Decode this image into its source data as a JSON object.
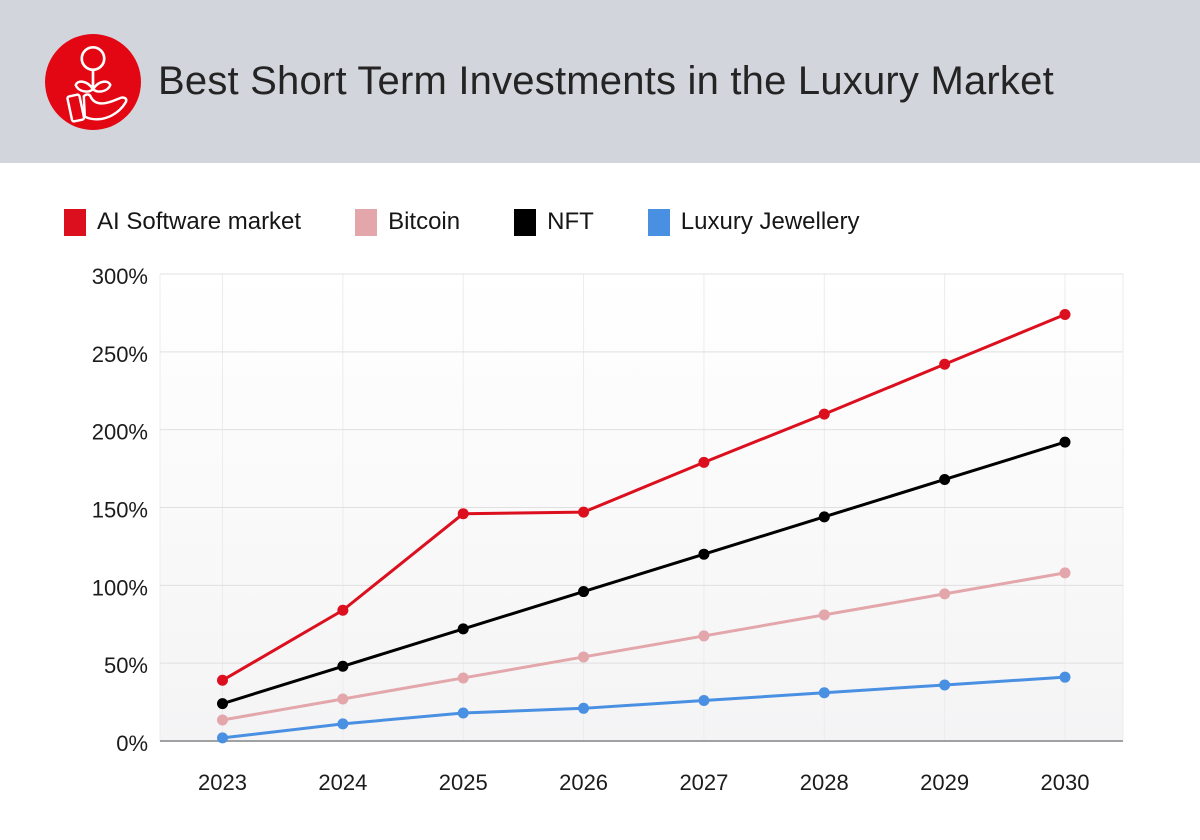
{
  "header": {
    "title": "Best Short Term Investments in the Luxury Market",
    "icon": "plant-in-hand-icon",
    "background_color": "#d3d5dc",
    "accent_color": "#e30613"
  },
  "chart_data": {
    "type": "line",
    "title": "Best Short Term Investments in the Luxury Market",
    "xlabel": "",
    "ylabel": "",
    "categories": [
      "2023",
      "2024",
      "2025",
      "2026",
      "2027",
      "2028",
      "2029",
      "2030"
    ],
    "series": [
      {
        "name": "AI Software market",
        "color": "#dc0f1e",
        "values": [
          39,
          84,
          146,
          147,
          179,
          210,
          242,
          274
        ]
      },
      {
        "name": "Bitcoin",
        "color": "#e3a7ab",
        "values": [
          13.5,
          27,
          40.5,
          54,
          67.5,
          81,
          94.5,
          108
        ]
      },
      {
        "name": "NFT",
        "color": "#000000",
        "values": [
          24,
          48,
          72,
          96,
          120,
          144,
          168,
          192
        ]
      },
      {
        "name": "Luxury Jewellery",
        "color": "#4a90e2",
        "values": [
          2,
          11,
          18,
          21,
          26,
          31,
          36,
          41
        ]
      }
    ],
    "ylim": [
      0,
      300
    ],
    "yticks": [
      0,
      50,
      100,
      150,
      200,
      250,
      300
    ],
    "ytick_labels": [
      "0%",
      "50%",
      "100%",
      "150%",
      "200%",
      "250%",
      "300%"
    ],
    "grid": true,
    "legend_position": "top-left",
    "colors": {
      "grid_horizontal": "#e0e0e1",
      "grid_vertical": "#ececee",
      "axis_line": "#9fa1a5",
      "tick_text": "#1c1c1c"
    }
  }
}
